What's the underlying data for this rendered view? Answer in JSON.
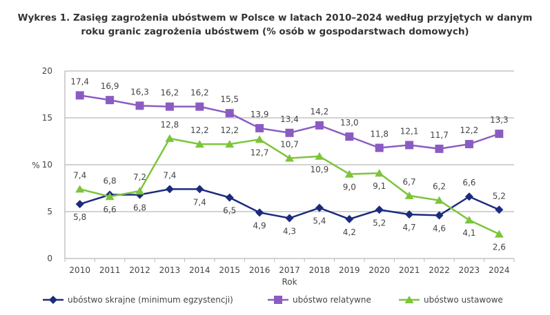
{
  "title_line1": "Wykres 1. Zasięg zagrożenia ubóstwem w Polsce w latach 2010–2024 według przyjętych w danym",
  "title_line2": "roku granic zagrożenia ubóstwem (% osób w gospodarstwach domowych)",
  "chart_data": {
    "type": "line",
    "title": "Wykres 1. Zasięg zagrożenia ubóstwem w Polsce w latach 2010–2024 według przyjętych w danym roku granic zagrożenia ubóstwem (% osób w gospodarstwach domowych)",
    "xlabel": "Rok",
    "ylabel": "%",
    "ylim": [
      0,
      20
    ],
    "yticks": [
      "0",
      "5",
      "10",
      "15",
      "20"
    ],
    "grid": true,
    "legend": "bottom",
    "categories": [
      "2010",
      "2011",
      "2012",
      "2013",
      "2014",
      "2015",
      "2016",
      "2017",
      "2018",
      "2019",
      "2020",
      "2021",
      "2022",
      "2023",
      "2024"
    ],
    "series": [
      {
        "name": "ubóstwo skrajne (minimum egzystencji)",
        "color": "#1c2a7e",
        "marker": "diamond",
        "values": [
          5.8,
          6.8,
          6.8,
          7.4,
          7.4,
          6.5,
          4.9,
          4.3,
          5.4,
          4.2,
          5.2,
          4.7,
          4.6,
          6.6,
          5.2
        ],
        "labels": [
          "5,8",
          "6,8",
          "6,8",
          "7,4",
          "7,4",
          "6,5",
          "4,9",
          "4,3",
          "5,4",
          "4,2",
          "5,2",
          "4,7",
          "4,6",
          "6,6",
          "5,2"
        ]
      },
      {
        "name": "ubóstwo relatywne",
        "color": "#8a5cc2",
        "marker": "square",
        "values": [
          17.4,
          16.9,
          16.3,
          16.2,
          16.2,
          15.5,
          13.9,
          13.4,
          14.2,
          13.0,
          11.8,
          12.1,
          11.7,
          12.2,
          13.3
        ],
        "labels": [
          "17,4",
          "16,9",
          "16,3",
          "16,2",
          "16,2",
          "15,5",
          "13,9",
          "13,4",
          "14,2",
          "13,0",
          "11,8",
          "12,1",
          "11,7",
          "12,2",
          "13,3"
        ]
      },
      {
        "name": "ubóstwo ustawowe",
        "color": "#7cc53a",
        "marker": "triangle",
        "values": [
          7.4,
          6.6,
          7.2,
          12.8,
          12.2,
          12.2,
          12.7,
          10.7,
          10.9,
          9.0,
          9.1,
          6.7,
          6.2,
          4.1,
          2.6
        ],
        "labels": [
          "7,4",
          "6,6",
          "7,2",
          "12,8",
          "12,2",
          "12,2",
          "12,7",
          "10,7",
          "10,9",
          "9,0",
          "9,1",
          "6,7",
          "6,2",
          "4,1",
          "2,6"
        ]
      }
    ]
  }
}
